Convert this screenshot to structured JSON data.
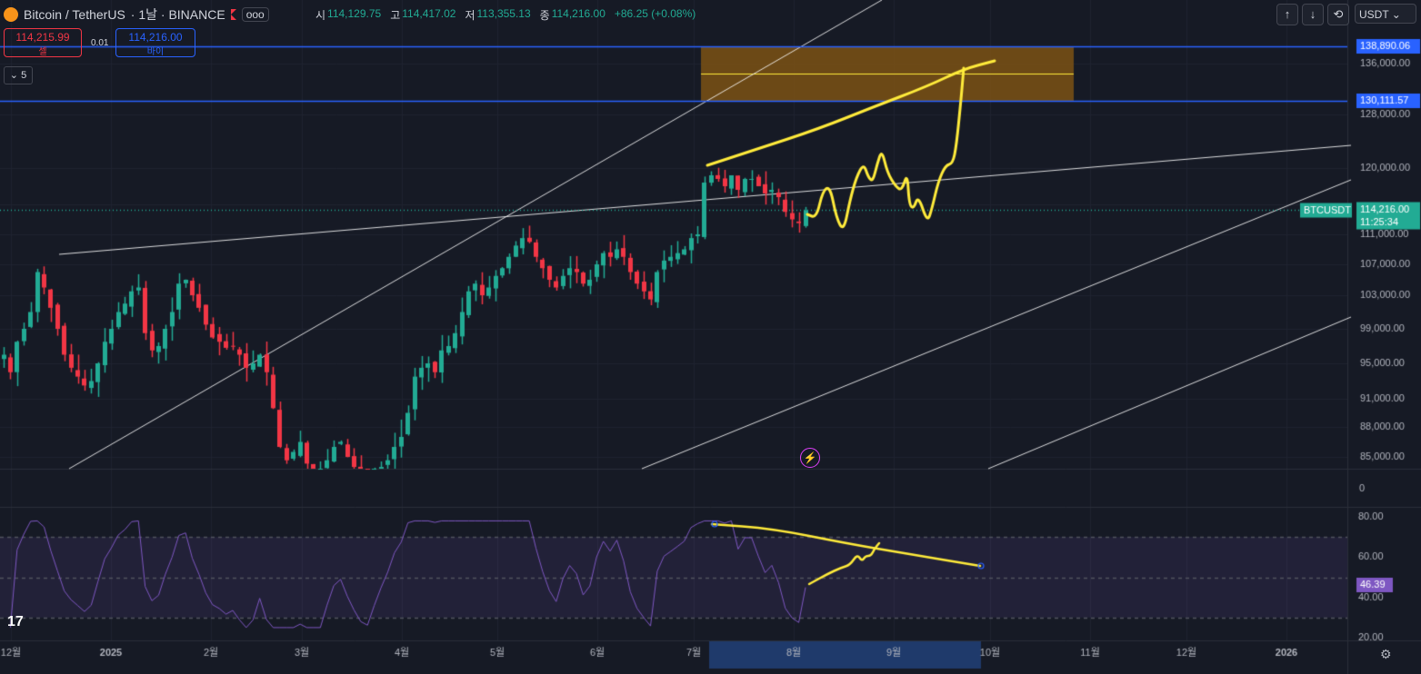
{
  "header": {
    "symbol": "Bitcoin / TetherUS",
    "interval": "· 1날 · BINANCE",
    "more": "ooo",
    "open_label": "시",
    "open": "114,129.75",
    "high_label": "고",
    "high": "114,417.02",
    "low_label": "저",
    "low": "113,355.13",
    "close_label": "종",
    "close": "114,216.00",
    "change": "+86.25 (+0.08%)"
  },
  "trade": {
    "sell_price": "114,215.99",
    "sell_label": "셀",
    "spread": "0.01",
    "buy_price": "114,216.00",
    "buy_label": "바이",
    "indicators_count": "5"
  },
  "toolbar": {
    "up": "↑",
    "down": "↓",
    "fit": "⟲",
    "currency": "USDT"
  },
  "chart_data": {
    "type": "candlestick",
    "symbol_label": "BTCUSDT",
    "price_axis": [
      "138,890.06",
      "136,000.00",
      "130,111.57",
      "128,000.00",
      "120,000.00",
      "115,000.00",
      "111,000.00",
      "107,000.00",
      "103,000.00",
      "99,000.00",
      "95,000.00",
      "91,000.00",
      "88,000.00",
      "85,000.00"
    ],
    "price_axis_values": [
      136000,
      128000,
      120000,
      115000,
      111000,
      107000,
      103000,
      99000,
      95000,
      91000,
      88000,
      85000
    ],
    "current_price": "114,216.00",
    "countdown": "11:25:34",
    "horizontal_levels": [
      {
        "value": 138890.06,
        "label": "138,890.06",
        "color": "#2962ff"
      },
      {
        "value": 130111.57,
        "label": "130,111.57",
        "color": "#2962ff"
      }
    ],
    "time_axis": [
      "12월",
      "2025",
      "2월",
      "3월",
      "4월",
      "5월",
      "6월",
      "7월",
      "8월",
      "9월",
      "10월",
      "11월",
      "12월",
      "2026"
    ],
    "rsi": {
      "axis": [
        "80.00",
        "60.00",
        "40.00",
        "20.00"
      ],
      "axis_values": [
        80,
        60,
        40,
        20
      ],
      "zero_label": "0",
      "upper_band": 70,
      "middle_band": 50,
      "lower_band": 30,
      "current": "46.39",
      "color": "#7e57c2"
    },
    "colors": {
      "up": "#22ab94",
      "down": "#f23645",
      "annotation": "#ffeb3b",
      "zone": "#8a5a12"
    },
    "closes": [
      96000,
      94000,
      97500,
      99000,
      101000,
      106000,
      104000,
      101500,
      99000,
      96000,
      94500,
      93500,
      92500,
      93000,
      95000,
      97500,
      99000,
      101000,
      102000,
      103500,
      104000,
      98500,
      96500,
      97000,
      99000,
      101000,
      104500,
      105000,
      103000,
      101500,
      99500,
      98000,
      97500,
      96800,
      97000,
      96000,
      94500,
      95000,
      96000,
      94000,
      90000,
      86000,
      84500,
      85500,
      86500,
      84000,
      82000,
      83000,
      84500,
      86000,
      86500,
      85000,
      83500,
      82000,
      81500,
      82500,
      83500,
      84500,
      86000,
      87000,
      89500,
      93500,
      94500,
      95000,
      94000,
      96500,
      97000,
      98500,
      101000,
      103500,
      104500,
      103000,
      104000,
      105500,
      106500,
      108000,
      109500,
      110500,
      110000,
      108000,
      106500,
      105000,
      104000,
      105500,
      106500,
      106000,
      104500,
      105000,
      107000,
      108500,
      108000,
      109000,
      108000,
      106000,
      104500,
      103500,
      102500,
      106000,
      107500,
      108000,
      108500,
      109000,
      110500,
      111000,
      118000,
      119000,
      118500,
      117500,
      119000,
      117000,
      118500,
      118500,
      117500,
      116500,
      117000,
      116000,
      114000,
      113000,
      112500,
      114216
    ]
  }
}
